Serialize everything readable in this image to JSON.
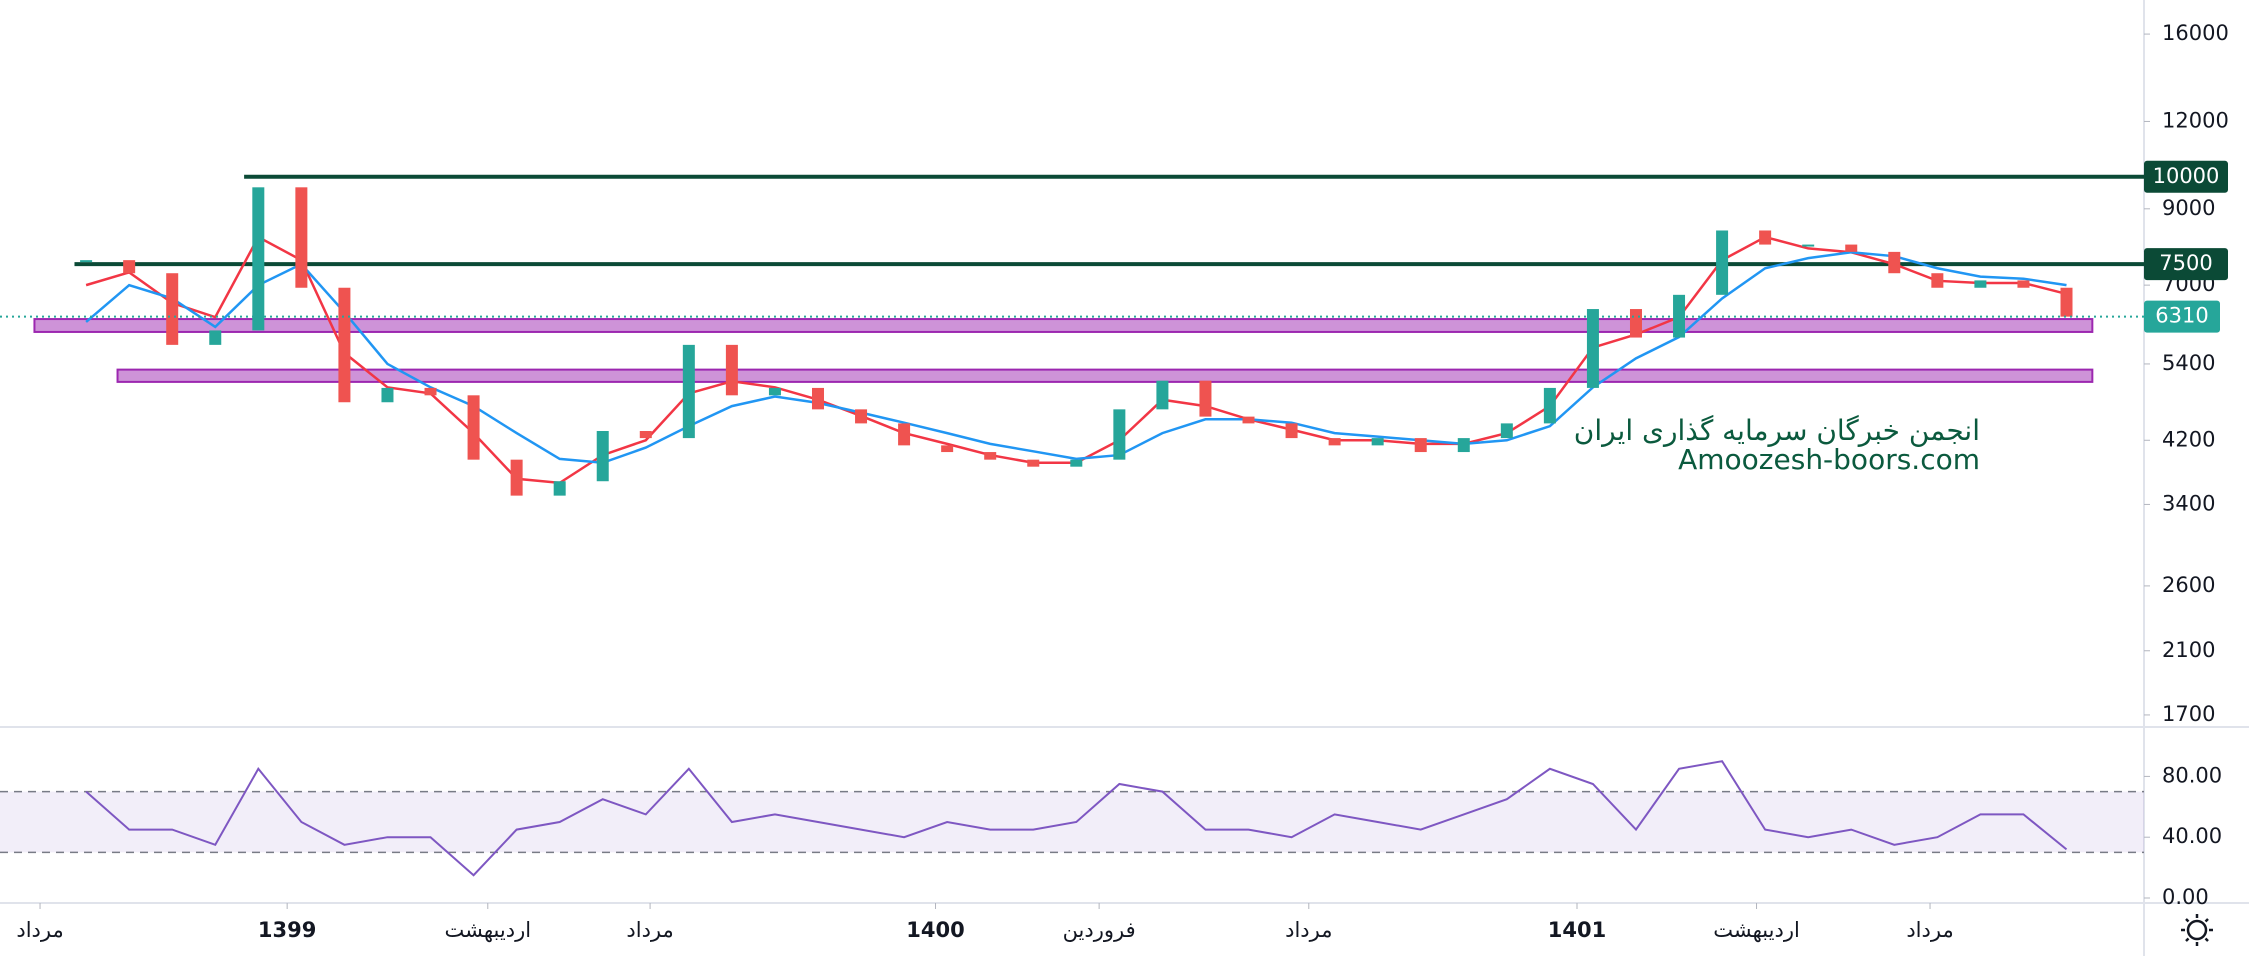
{
  "chart_data": {
    "type": "candlestick",
    "watermark": [
      "انجمن خبرگان سرمایه گذاری ایران",
      "Amoozesh-boors.com"
    ],
    "log_scale": true,
    "xlim": [
      -2,
      47.8
    ],
    "xticks": [
      {
        "value": -1.07,
        "label": "مرداد"
      },
      {
        "value": 4.67,
        "label": "1399"
      },
      {
        "value": 9.33,
        "label": "اردیبهشت"
      },
      {
        "value": 13.1,
        "label": "مرداد"
      },
      {
        "value": 19.73,
        "label": "1400"
      },
      {
        "value": 23.53,
        "label": "فروردین"
      },
      {
        "value": 28.4,
        "label": "مرداد"
      },
      {
        "value": 34.63,
        "label": "1401"
      },
      {
        "value": 38.8,
        "label": "اردیبهشت"
      },
      {
        "value": 42.83,
        "label": "مرداد"
      }
    ],
    "ylim": [
      1650,
      17900
    ],
    "yticks": [
      16000,
      12000,
      9000,
      7000,
      5400,
      4200,
      3400,
      2600,
      2100,
      1700
    ],
    "close": [
      7600,
      7280,
      5750,
      6030,
      9660,
      6940,
      4760,
      4990,
      4870,
      3940,
      3500,
      3670,
      4330,
      4230,
      5750,
      4870,
      4990,
      4650,
      4440,
      4130,
      4040,
      3940,
      3850,
      3940,
      4650,
      5110,
      4540,
      4440,
      4230,
      4130,
      4230,
      4040,
      4230,
      4440,
      4990,
      6470,
      5890,
      6780,
      8380,
      8000,
      8000,
      7810,
      7280,
      6940,
      7110,
      6940,
      6310
    ],
    "up_color": "#26a69a",
    "down_color": "#ef5350",
    "series": [
      {
        "color": "#f23645",
        "values": [
          7000,
          7300,
          6600,
          6300,
          8200,
          7600,
          5600,
          5000,
          4900,
          4300,
          3700,
          3650,
          4000,
          4200,
          4900,
          5100,
          5000,
          4800,
          4550,
          4300,
          4150,
          4000,
          3900,
          3900,
          4200,
          4800,
          4700,
          4500,
          4350,
          4200,
          4200,
          4150,
          4150,
          4300,
          4700,
          5700,
          5950,
          6300,
          7600,
          8200,
          7900,
          7800,
          7500,
          7100,
          7050,
          7050,
          6800
        ]
      },
      {
        "color": "#2196f3",
        "values": [
          6200,
          7000,
          6700,
          6100,
          7000,
          7500,
          6400,
          5400,
          5000,
          4700,
          4300,
          3950,
          3900,
          4100,
          4400,
          4700,
          4850,
          4750,
          4600,
          4450,
          4300,
          4150,
          4050,
          3950,
          4000,
          4300,
          4500,
          4500,
          4450,
          4300,
          4250,
          4200,
          4150,
          4200,
          4400,
          5000,
          5500,
          5900,
          6700,
          7400,
          7650,
          7800,
          7700,
          7400,
          7200,
          7150,
          7000
        ]
      }
    ],
    "levels": [
      {
        "value": 10000,
        "from": 3.67,
        "color": "#0b4a36"
      },
      {
        "value": 7500,
        "from": -0.27,
        "color": "#0b4a36"
      }
    ],
    "zones": [
      {
        "range": [
          6000,
          6260
        ],
        "x": [
          -1.2,
          46.6
        ]
      },
      {
        "range": [
          5090,
          5300
        ],
        "x": [
          0.73,
          46.6
        ]
      }
    ],
    "zone_color": "#ce93d8",
    "rsi": {
      "color": "#7e57c2",
      "ylim": [
        0,
        100
      ],
      "yticks": [
        {
          "value": 80,
          "label": "80.00"
        },
        {
          "value": 40,
          "label": "40.00"
        },
        {
          "value": 0,
          "label": "0.00"
        }
      ],
      "bands": [
        30,
        70
      ],
      "values": [
        70,
        45,
        45,
        35,
        85,
        50,
        35,
        40,
        40,
        15,
        45,
        50,
        65,
        55,
        85,
        50,
        55,
        50,
        45,
        40,
        50,
        45,
        45,
        50,
        75,
        70,
        45,
        45,
        40,
        55,
        50,
        45,
        55,
        65,
        85,
        75,
        45,
        85,
        90,
        45,
        40,
        45,
        35,
        40,
        55,
        55,
        32
      ]
    }
  }
}
